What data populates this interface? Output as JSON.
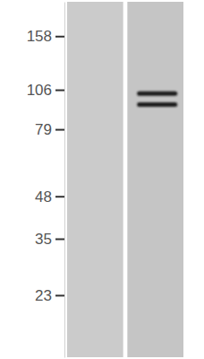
{
  "chart_data": {
    "type": "blot",
    "categories": [
      null,
      null
    ],
    "series": [
      {
        "values": [
          null,
          103
        ]
      },
      {
        "values": [
          null,
          95
        ]
      }
    ],
    "color": "#1e1e1e",
    "log": "y",
    "ylim": [
      14.5,
      204
    ],
    "yticks": [
      23,
      35,
      48,
      79,
      106,
      158
    ],
    "tick_labels": "y"
  }
}
